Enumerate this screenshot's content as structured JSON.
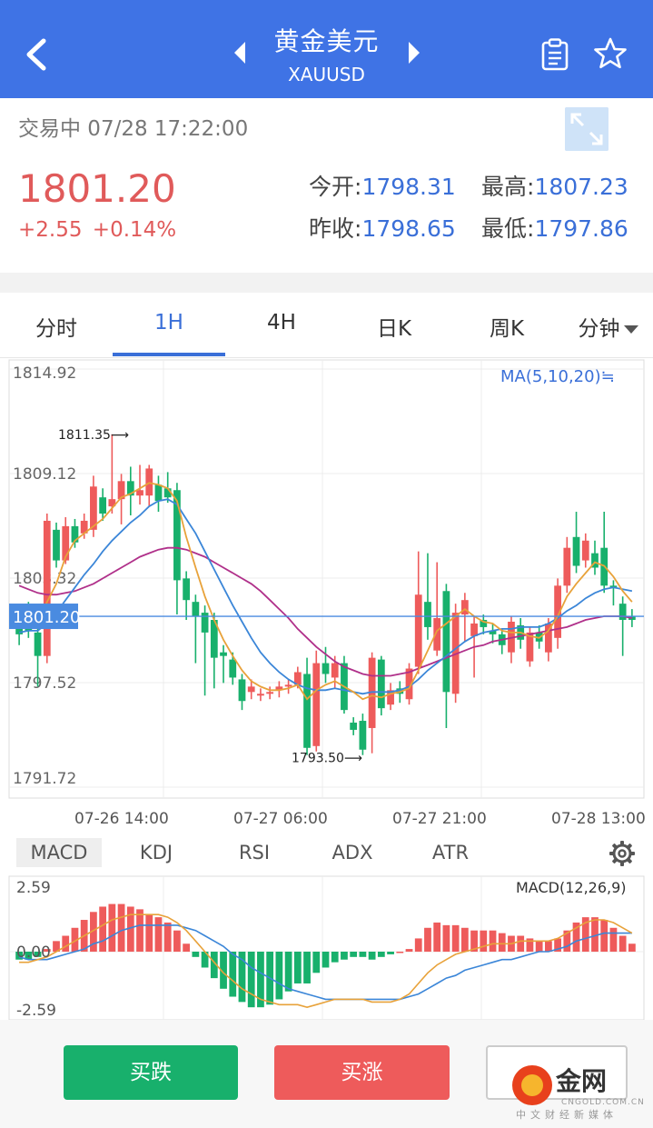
{
  "header": {
    "title": "黄金美元",
    "subtitle": "XAUUSD",
    "icons": [
      "back-icon",
      "prev-icon",
      "next-icon",
      "clipboard-icon",
      "star-icon"
    ]
  },
  "summary": {
    "status": "交易中 07/28 17:22:00",
    "price": "1801.20",
    "change": "+2.55 +0.14%",
    "open_label": "今开:",
    "open": "1798.31",
    "high_label": "最高:",
    "high": "1807.23",
    "prev_label": "昨收:",
    "prev": "1798.65",
    "low_label": "最低:",
    "low": "1797.86"
  },
  "tabs": [
    "分时",
    "1H",
    "4H",
    "日K",
    "周K",
    "分钟"
  ],
  "active_tab": "1H",
  "chart": {
    "ma_label": "MA(5,10,20)≒",
    "current_label": "1801.20",
    "high_annot": "1811.35⟶",
    "low_annot": "1793.50⟶",
    "time_labels": [
      "07-26 14:00",
      "07-27 06:00",
      "07-27 21:00",
      "07-28 13:00"
    ]
  },
  "indicators": {
    "tabs": [
      "MACD",
      "KDJ",
      "RSI",
      "ADX",
      "ATR"
    ],
    "active": "MACD",
    "macd_label": "MACD(12,26,9)"
  },
  "buttons": {
    "sell": "买跌",
    "buy": "买涨",
    "third": ""
  },
  "watermark": {
    "text": "金网",
    "sub": "CNGOLD.COM.CN",
    "sub2": "中文财经新媒体"
  },
  "colors": {
    "header": "#3f73e5",
    "up": "#ee5b5b",
    "down": "#18b06c",
    "accent": "#3a6fd8",
    "ma5": "#e8a23a",
    "ma10": "#3b86d8",
    "ma20": "#b0308a"
  },
  "chart_data": [
    {
      "type": "candlestick",
      "ylabel_ticks": [
        "1814.92",
        "1809.12",
        "1803.32",
        "1797.52",
        "1791.72"
      ],
      "ylim": [
        1791.72,
        1814.92
      ],
      "current": 1801.2,
      "high_marker": 1811.35,
      "low_marker": 1793.5,
      "candles": [
        {
          "o": 1801.2,
          "c": 1800.2,
          "h": 1801.6,
          "l": 1799.6
        },
        {
          "o": 1801.5,
          "c": 1800.4,
          "h": 1802.0,
          "l": 1800.0
        },
        {
          "o": 1800.3,
          "c": 1799.0,
          "h": 1800.6,
          "l": 1797.3
        },
        {
          "o": 1799.0,
          "c": 1806.5,
          "h": 1806.9,
          "l": 1798.6
        },
        {
          "o": 1806.0,
          "c": 1804.3,
          "h": 1806.4,
          "l": 1803.9
        },
        {
          "o": 1804.3,
          "c": 1806.2,
          "h": 1806.7,
          "l": 1804.1
        },
        {
          "o": 1806.2,
          "c": 1805.3,
          "h": 1806.6,
          "l": 1805.0
        },
        {
          "o": 1805.8,
          "c": 1806.5,
          "h": 1806.9,
          "l": 1805.5
        },
        {
          "o": 1806.0,
          "c": 1808.4,
          "h": 1809.0,
          "l": 1805.6
        },
        {
          "o": 1807.8,
          "c": 1806.9,
          "h": 1808.3,
          "l": 1806.5
        },
        {
          "o": 1807.3,
          "c": 1807.7,
          "h": 1811.3,
          "l": 1806.9
        },
        {
          "o": 1807.7,
          "c": 1808.7,
          "h": 1809.1,
          "l": 1806.3
        },
        {
          "o": 1808.7,
          "c": 1807.9,
          "h": 1809.5,
          "l": 1806.8
        },
        {
          "o": 1807.9,
          "c": 1808.2,
          "h": 1809.6,
          "l": 1807.4
        },
        {
          "o": 1807.9,
          "c": 1809.4,
          "h": 1809.6,
          "l": 1807.3
        },
        {
          "o": 1808.5,
          "c": 1807.6,
          "h": 1809.0,
          "l": 1807.0
        },
        {
          "o": 1808.3,
          "c": 1807.8,
          "h": 1809.2,
          "l": 1807.5
        },
        {
          "o": 1808.2,
          "c": 1803.2,
          "h": 1808.6,
          "l": 1801.3
        },
        {
          "o": 1803.3,
          "c": 1802.1,
          "h": 1803.7,
          "l": 1801.0
        },
        {
          "o": 1802.0,
          "c": 1801.2,
          "h": 1802.4,
          "l": 1798.6
        },
        {
          "o": 1801.4,
          "c": 1800.3,
          "h": 1801.8,
          "l": 1796.8
        },
        {
          "o": 1801.0,
          "c": 1798.9,
          "h": 1801.4,
          "l": 1797.2
        },
        {
          "o": 1799.2,
          "c": 1799.0,
          "h": 1799.6,
          "l": 1797.5
        },
        {
          "o": 1798.8,
          "c": 1797.8,
          "h": 1799.2,
          "l": 1797.4
        },
        {
          "o": 1797.7,
          "c": 1796.5,
          "h": 1798.0,
          "l": 1796.0
        },
        {
          "o": 1797.0,
          "c": 1797.3,
          "h": 1797.7,
          "l": 1796.6
        },
        {
          "o": 1796.8,
          "c": 1796.9,
          "h": 1797.2,
          "l": 1796.5
        },
        {
          "o": 1796.9,
          "c": 1797.0,
          "h": 1797.3,
          "l": 1796.6
        },
        {
          "o": 1797.1,
          "c": 1797.3,
          "h": 1797.6,
          "l": 1796.7
        },
        {
          "o": 1797.3,
          "c": 1797.4,
          "h": 1797.7,
          "l": 1796.9
        },
        {
          "o": 1797.4,
          "c": 1798.1,
          "h": 1798.4,
          "l": 1797.2
        },
        {
          "o": 1798.0,
          "c": 1793.9,
          "h": 1798.9,
          "l": 1793.5
        },
        {
          "o": 1794.0,
          "c": 1798.6,
          "h": 1799.3,
          "l": 1793.7
        },
        {
          "o": 1798.6,
          "c": 1798.0,
          "h": 1799.5,
          "l": 1797.5
        },
        {
          "o": 1797.8,
          "c": 1798.6,
          "h": 1799.0,
          "l": 1797.2
        },
        {
          "o": 1798.6,
          "c": 1796.0,
          "h": 1799.0,
          "l": 1795.8
        },
        {
          "o": 1795.3,
          "c": 1794.9,
          "h": 1795.6,
          "l": 1794.6
        },
        {
          "o": 1795.4,
          "c": 1793.8,
          "h": 1795.8,
          "l": 1793.5
        },
        {
          "o": 1795.0,
          "c": 1798.9,
          "h": 1799.2,
          "l": 1793.6
        },
        {
          "o": 1798.8,
          "c": 1796.1,
          "h": 1799.0,
          "l": 1795.7
        },
        {
          "o": 1796.3,
          "c": 1797.1,
          "h": 1797.5,
          "l": 1796.0
        },
        {
          "o": 1797.2,
          "c": 1796.9,
          "h": 1797.6,
          "l": 1796.4
        },
        {
          "o": 1796.6,
          "c": 1798.3,
          "h": 1798.6,
          "l": 1796.3
        },
        {
          "o": 1798.4,
          "c": 1802.4,
          "h": 1804.8,
          "l": 1798.0
        },
        {
          "o": 1802.0,
          "c": 1800.6,
          "h": 1804.7,
          "l": 1799.9
        },
        {
          "o": 1799.3,
          "c": 1801.1,
          "h": 1804.2,
          "l": 1799.0
        },
        {
          "o": 1802.6,
          "c": 1797.0,
          "h": 1803.0,
          "l": 1795.0
        },
        {
          "o": 1796.9,
          "c": 1801.4,
          "h": 1801.9,
          "l": 1796.4
        },
        {
          "o": 1801.3,
          "c": 1802.1,
          "h": 1802.5,
          "l": 1799.8
        },
        {
          "o": 1800.1,
          "c": 1800.8,
          "h": 1801.2,
          "l": 1797.8
        },
        {
          "o": 1801.0,
          "c": 1800.6,
          "h": 1801.3,
          "l": 1800.2
        },
        {
          "o": 1800.4,
          "c": 1800.2,
          "h": 1800.8,
          "l": 1799.7
        },
        {
          "o": 1800.2,
          "c": 1799.6,
          "h": 1800.5,
          "l": 1799.1
        },
        {
          "o": 1799.2,
          "c": 1800.9,
          "h": 1801.2,
          "l": 1798.6
        },
        {
          "o": 1800.7,
          "c": 1799.9,
          "h": 1801.1,
          "l": 1799.4
        },
        {
          "o": 1798.7,
          "c": 1800.3,
          "h": 1800.6,
          "l": 1798.4
        },
        {
          "o": 1800.3,
          "c": 1799.8,
          "h": 1800.7,
          "l": 1799.4
        },
        {
          "o": 1799.2,
          "c": 1800.8,
          "h": 1801.1,
          "l": 1798.7
        },
        {
          "o": 1800.0,
          "c": 1802.9,
          "h": 1803.3,
          "l": 1799.4
        },
        {
          "o": 1802.9,
          "c": 1805.0,
          "h": 1805.6,
          "l": 1802.5
        },
        {
          "o": 1805.6,
          "c": 1804.0,
          "h": 1807.0,
          "l": 1803.6
        },
        {
          "o": 1804.3,
          "c": 1805.4,
          "h": 1805.8,
          "l": 1803.9
        },
        {
          "o": 1804.7,
          "c": 1803.9,
          "h": 1805.4,
          "l": 1803.5
        },
        {
          "o": 1805.0,
          "c": 1802.9,
          "h": 1807.0,
          "l": 1802.5
        },
        {
          "o": 1802.9,
          "c": 1802.8,
          "h": 1803.2,
          "l": 1801.8
        },
        {
          "o": 1801.9,
          "c": 1801.0,
          "h": 1802.3,
          "l": 1799.0
        },
        {
          "o": 1801.2,
          "c": 1801.0,
          "h": 1801.6,
          "l": 1800.6
        }
      ],
      "ma5": [
        1801.2,
        1801.0,
        1800.7,
        1802.0,
        1803.0,
        1804.5,
        1805.4,
        1805.8,
        1806.2,
        1806.6,
        1807.2,
        1807.8,
        1808.0,
        1808.3,
        1808.6,
        1808.5,
        1808.3,
        1807.6,
        1805.6,
        1803.9,
        1802.3,
        1801.0,
        1799.9,
        1799.0,
        1798.2,
        1797.6,
        1797.3,
        1797.1,
        1797.1,
        1797.2,
        1797.4,
        1796.6,
        1797.1,
        1797.4,
        1797.6,
        1797.3,
        1797.0,
        1796.6,
        1796.8,
        1796.7,
        1796.9,
        1797.0,
        1797.2,
        1798.2,
        1799.3,
        1800.4,
        1800.8,
        1801.2,
        1801.6,
        1801.2,
        1800.9,
        1800.8,
        1800.4,
        1800.3,
        1800.3,
        1800.1,
        1800.0,
        1800.4,
        1801.2,
        1802.3,
        1803.0,
        1803.6,
        1804.2,
        1804.0,
        1803.4,
        1802.6,
        1802.0
      ],
      "ma10": [
        1800.3,
        1800.4,
        1800.4,
        1800.8,
        1801.4,
        1802.1,
        1802.8,
        1803.5,
        1804.1,
        1804.8,
        1805.4,
        1805.9,
        1806.4,
        1806.8,
        1807.3,
        1807.6,
        1807.7,
        1807.4,
        1806.6,
        1805.8,
        1804.8,
        1803.8,
        1802.8,
        1801.8,
        1800.9,
        1800.0,
        1799.2,
        1798.6,
        1798.1,
        1797.7,
        1797.4,
        1797.2,
        1797.1,
        1797.1,
        1797.2,
        1797.1,
        1797.0,
        1796.9,
        1797.0,
        1797.0,
        1797.0,
        1797.1,
        1797.3,
        1797.7,
        1798.2,
        1798.6,
        1799.0,
        1799.4,
        1799.8,
        1800.1,
        1800.3,
        1800.4,
        1800.5,
        1800.5,
        1800.6,
        1800.6,
        1800.6,
        1800.8,
        1801.1,
        1801.5,
        1801.8,
        1802.2,
        1802.5,
        1802.7,
        1802.8,
        1802.7,
        1802.6
      ],
      "ma20": [
        1802.9,
        1802.7,
        1802.5,
        1802.4,
        1802.4,
        1802.5,
        1802.6,
        1802.8,
        1803.0,
        1803.3,
        1803.6,
        1803.9,
        1804.2,
        1804.5,
        1804.7,
        1804.9,
        1805.0,
        1805.0,
        1804.9,
        1804.7,
        1804.5,
        1804.2,
        1803.9,
        1803.6,
        1803.3,
        1803.0,
        1802.6,
        1802.1,
        1801.6,
        1801.1,
        1800.5,
        1800.0,
        1799.5,
        1799.1,
        1798.7,
        1798.4,
        1798.2,
        1798.0,
        1797.9,
        1797.9,
        1797.9,
        1798.0,
        1798.1,
        1798.3,
        1798.5,
        1798.7,
        1798.9,
        1799.1,
        1799.3,
        1799.5,
        1799.6,
        1799.8,
        1799.9,
        1800.0,
        1800.1,
        1800.2,
        1800.3,
        1800.4,
        1800.5,
        1800.6,
        1800.8,
        1801.0,
        1801.1,
        1801.2,
        1801.2,
        1801.2,
        1801.1
      ]
    },
    {
      "type": "macd",
      "ylabel_ticks": [
        "2.59",
        "0.00",
        "-2.59"
      ],
      "ylim": [
        -2.59,
        2.59
      ],
      "hist": [
        -0.3,
        -0.3,
        -0.2,
        0.1,
        0.4,
        0.6,
        0.9,
        1.2,
        1.5,
        1.7,
        1.8,
        1.8,
        1.7,
        1.6,
        1.4,
        1.3,
        1.1,
        0.8,
        0.3,
        -0.2,
        -0.6,
        -1.0,
        -1.4,
        -1.7,
        -1.9,
        -2.1,
        -2.1,
        -2.0,
        -1.8,
        -1.5,
        -1.2,
        -1.2,
        -0.8,
        -0.6,
        -0.4,
        -0.3,
        -0.2,
        -0.2,
        -0.3,
        -0.2,
        -0.1,
        0.0,
        0.1,
        0.5,
        0.9,
        1.1,
        1.0,
        1.0,
        0.9,
        0.8,
        0.8,
        0.8,
        0.7,
        0.6,
        0.6,
        0.5,
        0.4,
        0.4,
        0.5,
        0.8,
        1.1,
        1.3,
        1.3,
        1.2,
        0.9,
        0.6,
        0.3
      ],
      "dif": [
        -0.4,
        -0.4,
        -0.3,
        -0.2,
        0.0,
        0.2,
        0.4,
        0.6,
        0.8,
        1.0,
        1.2,
        1.3,
        1.4,
        1.4,
        1.4,
        1.4,
        1.3,
        1.1,
        0.8,
        0.4,
        0.0,
        -0.4,
        -0.8,
        -1.1,
        -1.4,
        -1.6,
        -1.8,
        -1.9,
        -2.0,
        -2.0,
        -2.0,
        -2.1,
        -2.0,
        -1.9,
        -1.8,
        -1.8,
        -1.8,
        -1.8,
        -1.9,
        -1.9,
        -1.9,
        -1.8,
        -1.6,
        -1.2,
        -0.8,
        -0.5,
        -0.3,
        -0.1,
        0.0,
        0.1,
        0.2,
        0.3,
        0.3,
        0.3,
        0.4,
        0.4,
        0.4,
        0.4,
        0.5,
        0.7,
        0.9,
        1.1,
        1.2,
        1.2,
        1.1,
        0.9,
        0.7
      ],
      "dea": [
        -0.2,
        -0.3,
        -0.3,
        -0.3,
        -0.2,
        -0.1,
        0.0,
        0.1,
        0.3,
        0.4,
        0.6,
        0.8,
        0.9,
        1.0,
        1.0,
        1.0,
        1.0,
        1.0,
        0.9,
        0.8,
        0.6,
        0.4,
        0.2,
        -0.1,
        -0.3,
        -0.6,
        -0.8,
        -1.0,
        -1.2,
        -1.4,
        -1.5,
        -1.6,
        -1.7,
        -1.8,
        -1.8,
        -1.8,
        -1.8,
        -1.8,
        -1.8,
        -1.8,
        -1.8,
        -1.8,
        -1.7,
        -1.6,
        -1.4,
        -1.2,
        -1.0,
        -0.9,
        -0.7,
        -0.6,
        -0.5,
        -0.4,
        -0.3,
        -0.3,
        -0.2,
        -0.1,
        0.0,
        0.0,
        0.1,
        0.2,
        0.4,
        0.5,
        0.6,
        0.7,
        0.7,
        0.7,
        0.7
      ]
    }
  ]
}
